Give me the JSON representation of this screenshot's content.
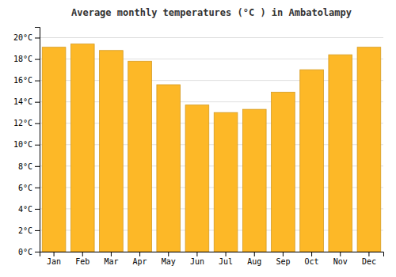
{
  "chart_data": {
    "type": "bar",
    "title": "Average monthly temperatures (°C ) in Ambatolampy",
    "categories": [
      "Jan",
      "Feb",
      "Mar",
      "Apr",
      "May",
      "Jun",
      "Jul",
      "Aug",
      "Sep",
      "Oct",
      "Nov",
      "Dec"
    ],
    "values": [
      19.1,
      19.4,
      18.8,
      17.8,
      15.6,
      13.7,
      13.0,
      13.3,
      14.9,
      17.0,
      18.4,
      19.1
    ],
    "color": "#FDB827",
    "ylim": [
      0,
      21
    ],
    "yticks": [
      {
        "value": 0,
        "label": "0°C"
      },
      {
        "value": 2,
        "label": "2°C"
      },
      {
        "value": 4,
        "label": "4°C"
      },
      {
        "value": 6,
        "label": "6°C"
      },
      {
        "value": 8,
        "label": "8°C"
      },
      {
        "value": 10,
        "label": "10°C"
      },
      {
        "value": 12,
        "label": "12°C"
      },
      {
        "value": 14,
        "label": "14°C"
      },
      {
        "value": 16,
        "label": "16°C"
      },
      {
        "value": 18,
        "label": "18°C"
      },
      {
        "value": 20,
        "label": "20°C"
      }
    ],
    "grid": true
  }
}
